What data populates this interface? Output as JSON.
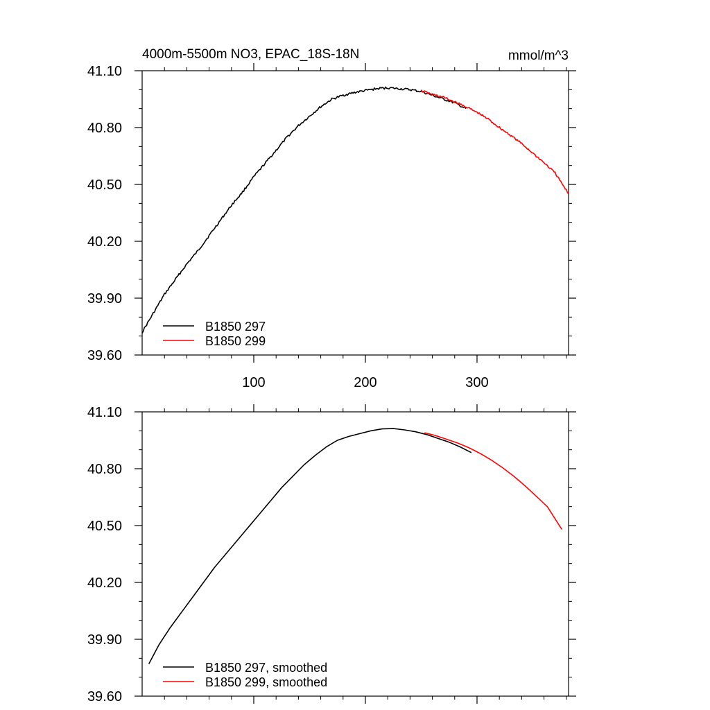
{
  "figure": {
    "title_left": "4000m-5500m NO3, EPAC_18S-18N",
    "title_right": "mmol/m^3"
  },
  "chart_data": [
    {
      "type": "line",
      "title": "4000m-5500m NO3, EPAC_18S-18N",
      "units": "mmol/m^3",
      "xlim": [
        0,
        382
      ],
      "ylim": [
        39.6,
        41.1
      ],
      "x_ticks": [
        100,
        200,
        300
      ],
      "x_tick_labels": [
        "100",
        "200",
        "300"
      ],
      "y_ticks": [
        39.6,
        39.9,
        40.2,
        40.5,
        40.8,
        41.1
      ],
      "y_tick_labels": [
        "39.60",
        "39.90",
        "40.20",
        "40.50",
        "40.80",
        "41.10"
      ],
      "legend_position": "bottom-left",
      "noisy": true,
      "series": [
        {
          "name": "B1850 297",
          "color": "#000000",
          "x": [
            0,
            10,
            20,
            30,
            40,
            50,
            60,
            70,
            80,
            90,
            100,
            110,
            120,
            130,
            140,
            150,
            160,
            170,
            180,
            190,
            200,
            210,
            220,
            230,
            240,
            250,
            260,
            270,
            280,
            290
          ],
          "y": [
            39.72,
            39.82,
            39.92,
            40.0,
            40.08,
            40.15,
            40.23,
            40.31,
            40.39,
            40.46,
            40.54,
            40.61,
            40.68,
            40.75,
            40.81,
            40.86,
            40.91,
            40.95,
            40.97,
            40.985,
            40.995,
            41.005,
            41.01,
            41.005,
            41.0,
            40.99,
            40.97,
            40.95,
            40.93,
            40.9
          ]
        },
        {
          "name": "B1850 299",
          "color": "#ff0000",
          "x": [
            250,
            260,
            270,
            280,
            290,
            300,
            310,
            320,
            330,
            340,
            350,
            360,
            370,
            382
          ],
          "y": [
            40.995,
            40.975,
            40.96,
            40.935,
            40.91,
            40.88,
            40.845,
            40.8,
            40.76,
            40.715,
            40.665,
            40.615,
            40.56,
            40.45
          ]
        }
      ]
    },
    {
      "type": "line",
      "xlim": [
        0,
        382
      ],
      "ylim": [
        39.6,
        41.1
      ],
      "x_ticks": [
        100,
        200,
        300
      ],
      "y_ticks": [
        39.6,
        39.9,
        40.2,
        40.5,
        40.8,
        41.1
      ],
      "y_tick_labels": [
        "39.60",
        "39.90",
        "40.20",
        "40.50",
        "40.80",
        "41.10"
      ],
      "legend_position": "bottom-left",
      "noisy": false,
      "series": [
        {
          "name": "B1850 297, smoothed",
          "color": "#000000",
          "x": [
            6,
            15,
            25,
            35,
            45,
            55,
            65,
            75,
            85,
            95,
            105,
            115,
            125,
            135,
            145,
            155,
            165,
            175,
            185,
            195,
            205,
            215,
            225,
            235,
            245,
            255,
            265,
            275,
            285,
            295
          ],
          "y": [
            39.77,
            39.87,
            39.96,
            40.04,
            40.12,
            40.2,
            40.28,
            40.35,
            40.42,
            40.49,
            40.56,
            40.63,
            40.7,
            40.76,
            40.82,
            40.87,
            40.915,
            40.95,
            40.97,
            40.985,
            41.0,
            41.01,
            41.012,
            41.005,
            40.995,
            40.98,
            40.96,
            40.94,
            40.915,
            40.885
          ]
        },
        {
          "name": "B1850 299, smoothed",
          "color": "#ff0000",
          "x": [
            253,
            263,
            273,
            283,
            293,
            303,
            313,
            323,
            333,
            343,
            353,
            363,
            376
          ],
          "y": [
            40.99,
            40.975,
            40.955,
            40.935,
            40.91,
            40.88,
            40.845,
            40.805,
            40.76,
            40.71,
            40.655,
            40.6,
            40.48
          ]
        }
      ]
    }
  ]
}
